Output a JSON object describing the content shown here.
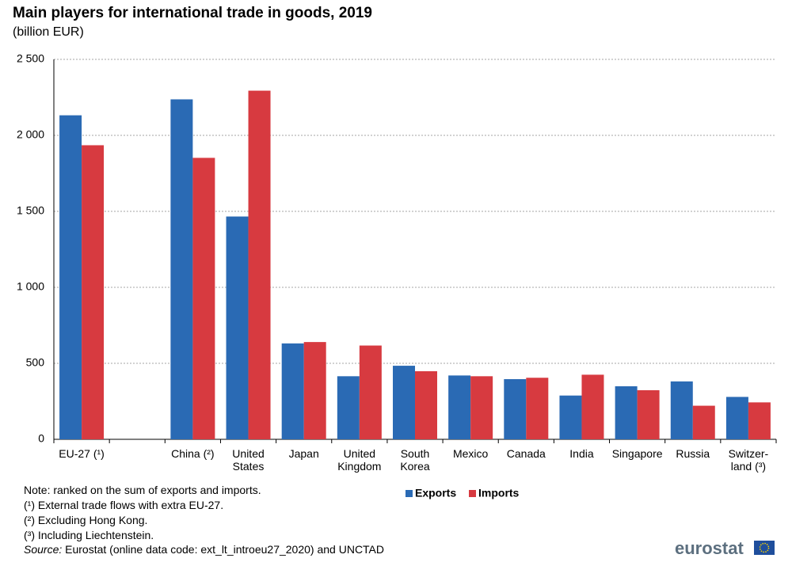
{
  "chart_data": {
    "type": "bar",
    "title": "Main players for international trade in goods, 2019",
    "subtitle": "(billion EUR)",
    "categories": [
      "EU-27 (¹)",
      null,
      "China (²)",
      "United\nStates",
      "Japan",
      "United\nKingdom",
      "South\nKorea",
      "Mexico",
      "Canada",
      "India",
      "Singapore",
      "Russia",
      "Switzer-\nland (³)"
    ],
    "series": [
      {
        "name": "Exports",
        "color": "#2a6ab4",
        "values": [
          2132,
          null,
          2237,
          1466,
          631,
          415,
          484,
          420,
          396,
          288,
          349,
          381,
          279
        ]
      },
      {
        "name": "Imports",
        "color": "#d73a40",
        "values": [
          1935,
          null,
          1852,
          2294,
          640,
          617,
          448,
          415,
          405,
          425,
          323,
          221,
          243
        ]
      }
    ],
    "ylim": [
      0,
      2500
    ],
    "yticks": [
      0,
      500,
      {
        "value": 1000,
        "label": "1 000"
      },
      {
        "value": 1500,
        "label": "1 500"
      },
      {
        "value": 2000,
        "label": "2 000"
      },
      {
        "value": 2500,
        "label": "2 500"
      }
    ],
    "grid": true,
    "notes": [
      "Note: ranked on the sum of exports and imports.",
      "(¹) External trade flows with extra EU-27.",
      "(²) Excluding Hong Kong.",
      "(³) Including  Liechtenstein."
    ],
    "source_label": "Source:",
    "source": "Eurostat (online data code: ext_lt_introeu27_2020) and UNCTAD",
    "logo": "eurostat"
  }
}
